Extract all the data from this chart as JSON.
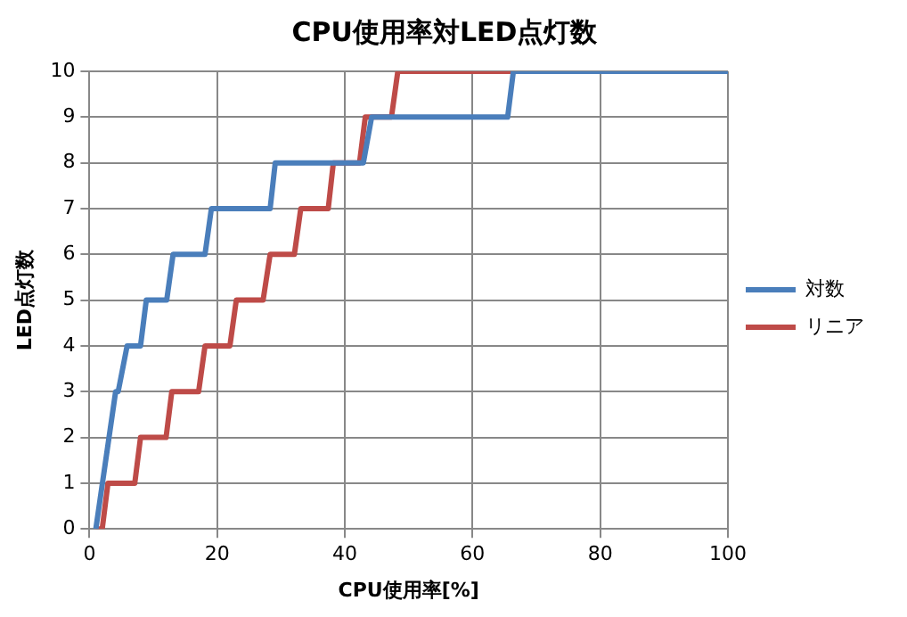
{
  "chart_data": {
    "type": "line",
    "title": "CPU使用率対LED点灯数",
    "xlabel": "CPU使用率[%]",
    "ylabel": "LED点灯数",
    "xlim": [
      0,
      100
    ],
    "xticks": [
      0,
      20,
      40,
      60,
      80,
      100
    ],
    "ylim": [
      0,
      10
    ],
    "yticks": [
      0,
      1,
      2,
      3,
      4,
      5,
      6,
      7,
      8,
      9,
      10
    ],
    "grid": true,
    "legend": "right",
    "marker": "none",
    "series": [
      {
        "name": "対数",
        "color": "#4a7ebb",
        "x": [
          1,
          4.1,
          4.5,
          5.9,
          8,
          8.9,
          12.1,
          13.1,
          18.1,
          19.1,
          28.3,
          29.1,
          42.9,
          44.2,
          65.5,
          66.4,
          100
        ],
        "values": [
          0,
          3,
          3,
          4,
          4,
          5,
          5,
          6,
          6,
          7,
          7,
          8,
          8,
          9,
          9,
          10,
          10
        ]
      },
      {
        "name": "リニア",
        "color": "#be4b48",
        "x": [
          1,
          2,
          2.9,
          7.1,
          8,
          12,
          12.9,
          17.1,
          18.1,
          22,
          23,
          27.2,
          28.3,
          32.1,
          33.1,
          37.4,
          38.2,
          42.3,
          43.2,
          47.3,
          48.3,
          100
        ],
        "values": [
          0,
          0,
          1,
          1,
          2,
          2,
          3,
          3,
          4,
          4,
          5,
          5,
          6,
          6,
          7,
          7,
          8,
          8,
          9,
          9,
          10,
          10
        ]
      }
    ]
  }
}
